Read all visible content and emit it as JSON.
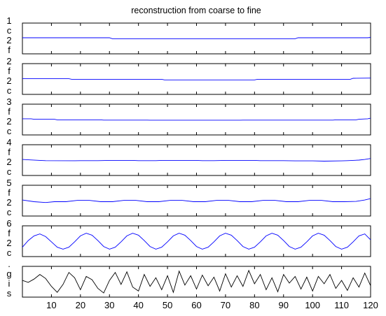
{
  "chart_data": {
    "type": "line",
    "title": "reconstruction from coarse to fine",
    "x_tick_labels": [
      "10",
      "20",
      "30",
      "40",
      "50",
      "60",
      "70",
      "80",
      "90",
      "100",
      "110",
      "120"
    ],
    "x_ticks": [
      10,
      20,
      30,
      40,
      50,
      60,
      70,
      80,
      90,
      100,
      110,
      120
    ],
    "xlim": [
      0,
      120
    ],
    "panels": [
      {
        "ylabel_chars": [
          "1",
          "c",
          "2",
          "f"
        ],
        "color": "#0000ff",
        "ylim": [
          -1,
          1
        ],
        "x": [
          0,
          30,
          31,
          94,
          95,
          119,
          120
        ],
        "y": [
          0.05,
          0.05,
          -0.02,
          -0.02,
          0.05,
          0.05,
          0.08
        ]
      },
      {
        "ylabel_chars": [
          "2",
          "f",
          "2",
          "c"
        ],
        "color": "#0000ff",
        "ylim": [
          -1,
          1
        ],
        "x": [
          0,
          16,
          17,
          48,
          49,
          80,
          81,
          113,
          114,
          120
        ],
        "y": [
          0.02,
          0.02,
          -0.02,
          -0.02,
          -0.07,
          -0.07,
          -0.02,
          -0.02,
          0.05,
          0.07
        ]
      },
      {
        "ylabel_chars": [
          "3",
          "f",
          "2",
          "c"
        ],
        "color": "#0000ff",
        "ylim": [
          -1,
          1
        ],
        "x": [
          0,
          3,
          4,
          11,
          12,
          27,
          28,
          43,
          44,
          59,
          60,
          75,
          76,
          91,
          92,
          107,
          108,
          115,
          116,
          119,
          120
        ],
        "y": [
          0.06,
          0.06,
          0.02,
          0.02,
          -0.02,
          -0.02,
          -0.04,
          -0.04,
          -0.05,
          -0.05,
          -0.05,
          -0.05,
          -0.04,
          -0.04,
          -0.04,
          -0.04,
          -0.02,
          -0.02,
          0.02,
          0.06,
          0.1
        ]
      },
      {
        "ylabel_chars": [
          "4",
          "f",
          "2",
          "c"
        ],
        "color": "#0000ff",
        "ylim": [
          -1,
          1
        ],
        "x": [
          0,
          2,
          6,
          8,
          18,
          20,
          26,
          30,
          38,
          40,
          46,
          48,
          60,
          62,
          66,
          70,
          80,
          82,
          90,
          94,
          100,
          104,
          110,
          112,
          116,
          118,
          120
        ],
        "y": [
          0.05,
          0.02,
          -0.02,
          -0.04,
          -0.05,
          -0.04,
          -0.04,
          -0.02,
          -0.02,
          -0.04,
          -0.04,
          -0.02,
          -0.02,
          -0.04,
          -0.04,
          -0.02,
          -0.02,
          -0.04,
          -0.04,
          -0.06,
          -0.06,
          -0.08,
          -0.06,
          -0.04,
          0.0,
          0.05,
          0.12
        ]
      },
      {
        "ylabel_chars": [
          "5",
          "f",
          "2",
          "c"
        ],
        "color": "#0000ff",
        "ylim": [
          -1,
          1
        ],
        "x": [
          0,
          4,
          8,
          11,
          15,
          19,
          23,
          27,
          31,
          35,
          39,
          43,
          47,
          51,
          55,
          59,
          63,
          67,
          71,
          75,
          79,
          83,
          87,
          91,
          95,
          99,
          103,
          107,
          111,
          115,
          118,
          120
        ],
        "y": [
          0.05,
          -0.08,
          -0.14,
          -0.08,
          -0.08,
          0.02,
          0.02,
          -0.08,
          -0.08,
          0.02,
          0.02,
          -0.08,
          -0.08,
          0.02,
          0.02,
          -0.08,
          -0.08,
          0.02,
          0.02,
          -0.08,
          -0.08,
          0.02,
          0.02,
          -0.08,
          -0.08,
          0.02,
          0.02,
          -0.08,
          -0.08,
          -0.06,
          0.05,
          0.15
        ]
      },
      {
        "ylabel_chars": [
          "6",
          "f",
          "2",
          "c"
        ],
        "color": "#0000ff",
        "ylim": [
          -1,
          1
        ],
        "x": [
          0,
          2,
          4,
          6,
          8,
          10,
          12,
          14,
          16,
          18,
          20,
          22,
          24,
          26,
          28,
          30,
          32,
          34,
          36,
          38,
          40,
          42,
          44,
          46,
          48,
          50,
          52,
          54,
          56,
          58,
          60,
          62,
          64,
          66,
          68,
          70,
          72,
          74,
          76,
          78,
          80,
          82,
          84,
          86,
          88,
          90,
          92,
          94,
          96,
          98,
          100,
          102,
          104,
          106,
          108,
          110,
          112,
          114,
          116,
          118,
          120
        ],
        "y": [
          -0.45,
          0.05,
          0.4,
          0.55,
          0.35,
          -0.05,
          -0.45,
          -0.6,
          -0.45,
          -0.05,
          0.4,
          0.6,
          0.45,
          0.05,
          -0.4,
          -0.6,
          -0.45,
          -0.05,
          0.4,
          0.6,
          0.45,
          0.05,
          -0.4,
          -0.6,
          -0.45,
          -0.05,
          0.4,
          0.6,
          0.45,
          0.05,
          -0.4,
          -0.6,
          -0.45,
          -0.05,
          0.4,
          0.6,
          0.45,
          0.05,
          -0.4,
          -0.6,
          -0.45,
          -0.05,
          0.4,
          0.6,
          0.45,
          0.05,
          -0.4,
          -0.6,
          -0.45,
          -0.05,
          0.4,
          0.6,
          0.45,
          0.05,
          -0.4,
          -0.6,
          -0.45,
          -0.05,
          0.4,
          0.55,
          0.1
        ]
      },
      {
        "ylabel_chars": [
          ".",
          "g",
          "i",
          "s"
        ],
        "color": "#000000",
        "ylim": [
          -1,
          1
        ],
        "x": [
          0,
          2,
          4,
          6,
          8,
          10,
          12,
          14,
          16,
          18,
          20,
          22,
          24,
          26,
          28,
          30,
          32,
          34,
          36,
          38,
          40,
          42,
          44,
          46,
          48,
          50,
          52,
          54,
          56,
          58,
          60,
          62,
          64,
          66,
          68,
          70,
          72,
          74,
          76,
          78,
          80,
          82,
          84,
          86,
          88,
          90,
          92,
          94,
          96,
          98,
          100,
          102,
          104,
          106,
          108,
          110,
          112,
          114,
          116,
          118,
          120
        ],
        "y": [
          0.1,
          -0.05,
          0.2,
          0.55,
          0.25,
          -0.35,
          -0.8,
          -0.2,
          0.7,
          0.3,
          -0.6,
          0.4,
          0.15,
          -0.5,
          -0.85,
          0.1,
          0.7,
          -0.2,
          0.75,
          -0.4,
          -0.7,
          0.55,
          -0.35,
          0.3,
          -0.6,
          0.45,
          -0.8,
          0.8,
          -0.25,
          0.45,
          -0.55,
          0.5,
          -0.3,
          0.35,
          -0.7,
          0.6,
          -0.4,
          0.45,
          -0.35,
          0.85,
          -0.15,
          0.55,
          -0.6,
          0.3,
          -0.75,
          0.55,
          -0.1,
          0.4,
          -0.55,
          0.35,
          -0.7,
          0.4,
          -0.15,
          0.55,
          -0.5,
          0.1,
          -0.65,
          0.3,
          -0.4,
          0.65,
          -0.3
        ]
      }
    ]
  }
}
